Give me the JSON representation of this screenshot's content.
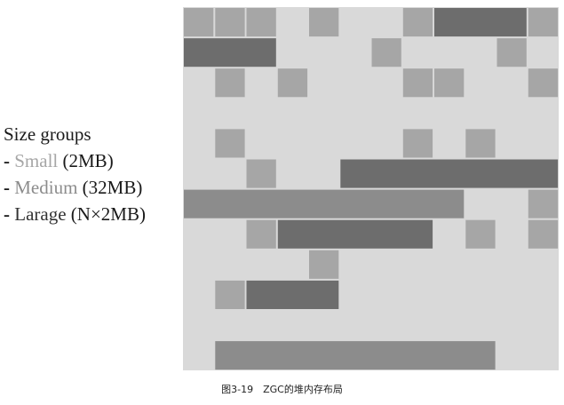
{
  "legend": {
    "title": "Size groups",
    "items": [
      {
        "dash": "-",
        "name": "Small",
        "size": "(2MB)"
      },
      {
        "dash": "-",
        "name": "Medium",
        "size": "(32MB)"
      },
      {
        "dash": "-",
        "name": "Larage",
        "size": "(N×2MB)"
      }
    ]
  },
  "caption": "图3-19　ZGC的堆内存布局",
  "colors": {
    "background": "#d9d9d9",
    "small": "#a6a6a6",
    "medium": "#6d6d6d",
    "large": "#8c8c8c",
    "small_label": "#a6a6a6",
    "medium_label": "#8c8c8c",
    "large_label": "#333333"
  },
  "heap": {
    "unit_note": "",
    "pages": [
      {
        "type": "small",
        "col": 0,
        "row": 0,
        "span": 1
      },
      {
        "type": "small",
        "col": 1,
        "row": 0,
        "span": 1
      },
      {
        "type": "small",
        "col": 2,
        "row": 0,
        "span": 1
      },
      {
        "type": "small",
        "col": 4,
        "row": 0,
        "span": 1
      },
      {
        "type": "small",
        "col": 7,
        "row": 0,
        "span": 1
      },
      {
        "type": "medium",
        "col": 8,
        "row": 0,
        "span": 3
      },
      {
        "type": "small",
        "col": 11,
        "row": 0,
        "span": 1
      },
      {
        "type": "medium",
        "col": 0,
        "row": 1,
        "span": 3
      },
      {
        "type": "small",
        "col": 6,
        "row": 1,
        "span": 1
      },
      {
        "type": "small",
        "col": 10,
        "row": 1,
        "span": 1
      },
      {
        "type": "small",
        "col": 1,
        "row": 2,
        "span": 1
      },
      {
        "type": "small",
        "col": 3,
        "row": 2,
        "span": 1
      },
      {
        "type": "small",
        "col": 7,
        "row": 2,
        "span": 1
      },
      {
        "type": "small",
        "col": 8,
        "row": 2,
        "span": 1
      },
      {
        "type": "small",
        "col": 11,
        "row": 2,
        "span": 1
      },
      {
        "type": "small",
        "col": 1,
        "row": 4,
        "span": 1
      },
      {
        "type": "small",
        "col": 7,
        "row": 4,
        "span": 1
      },
      {
        "type": "small",
        "col": 9,
        "row": 4,
        "span": 1
      },
      {
        "type": "small",
        "col": 2,
        "row": 5,
        "span": 1
      },
      {
        "type": "medium",
        "col": 5,
        "row": 5,
        "span": 7
      },
      {
        "type": "large",
        "col": 0,
        "row": 6,
        "span": 9
      },
      {
        "type": "small",
        "col": 11,
        "row": 6,
        "span": 1
      },
      {
        "type": "small",
        "col": 2,
        "row": 7,
        "span": 1
      },
      {
        "type": "medium",
        "col": 3,
        "row": 7,
        "span": 5
      },
      {
        "type": "small",
        "col": 9,
        "row": 7,
        "span": 1
      },
      {
        "type": "small",
        "col": 11,
        "row": 7,
        "span": 1
      },
      {
        "type": "small",
        "col": 4,
        "row": 8,
        "span": 1
      },
      {
        "type": "small",
        "col": 1,
        "row": 9,
        "span": 1
      },
      {
        "type": "medium",
        "col": 2,
        "row": 9,
        "span": 3
      },
      {
        "type": "large",
        "col": 1,
        "row": 11,
        "span": 9
      }
    ],
    "grid": {
      "cols": 12,
      "rows": 12
    }
  }
}
